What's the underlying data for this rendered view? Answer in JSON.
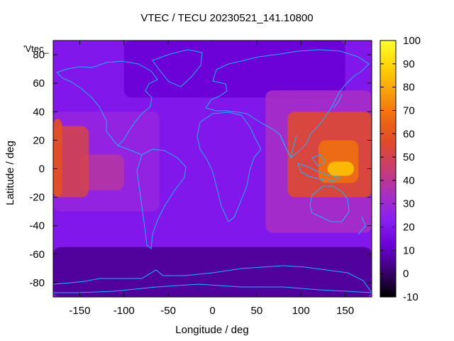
{
  "title": "VTEC / TECU 20230521_141.10800",
  "series_key": "'Vtec_",
  "x_axis": {
    "label": "Longitude / deg",
    "ticks": [
      -150,
      -100,
      -50,
      0,
      50,
      100,
      150
    ],
    "range": [
      -180,
      180
    ]
  },
  "y_axis": {
    "label": "Latitude / deg",
    "ticks": [
      -80,
      -60,
      -40,
      -20,
      0,
      20,
      40,
      60,
      80
    ],
    "range": [
      -90,
      90
    ]
  },
  "colorbar": {
    "ticks": [
      -10,
      0,
      10,
      20,
      30,
      40,
      50,
      60,
      70,
      80,
      90,
      100
    ],
    "range": [
      -10,
      100
    ],
    "palette": [
      "#000000",
      "#3a0070",
      "#6a00d6",
      "#8a1ff2",
      "#a830c0",
      "#c83d70",
      "#df4a2a",
      "#ef6a10",
      "#f8a008",
      "#ffd400",
      "#ffff30"
    ]
  },
  "coastline_color": "#16b6ff",
  "chart_data": {
    "type": "heatmap",
    "title": "VTEC / TECU 20230521_141.10800",
    "xlabel": "Longitude / deg",
    "ylabel": "Latitude / deg",
    "xlim": [
      -180,
      180
    ],
    "ylim": [
      -90,
      90
    ],
    "value_range": [
      -10,
      100
    ],
    "background_value": 20,
    "regions": [
      {
        "lon": [
          -180,
          -170
        ],
        "lat": [
          -20,
          35
        ],
        "vtec": 58
      },
      {
        "lon": [
          -180,
          -140
        ],
        "lat": [
          -20,
          30
        ],
        "vtec": 50
      },
      {
        "lon": [
          -150,
          -100
        ],
        "lat": [
          -15,
          10
        ],
        "vtec": 38
      },
      {
        "lon": [
          -180,
          -60
        ],
        "lat": [
          -30,
          40
        ],
        "vtec": 27
      },
      {
        "lon": [
          85,
          180
        ],
        "lat": [
          -20,
          40
        ],
        "vtec": 55
      },
      {
        "lon": [
          120,
          165
        ],
        "lat": [
          -10,
          20
        ],
        "vtec": 68
      },
      {
        "lon": [
          130,
          160
        ],
        "lat": [
          -5,
          5
        ],
        "vtec": 85
      },
      {
        "lon": [
          60,
          180
        ],
        "lat": [
          -45,
          55
        ],
        "vtec": 33
      },
      {
        "lon": [
          -180,
          180
        ],
        "lat": [
          -90,
          -55
        ],
        "vtec": 5
      },
      {
        "lon": [
          -100,
          150
        ],
        "lat": [
          50,
          90
        ],
        "vtec": 12
      }
    ]
  }
}
